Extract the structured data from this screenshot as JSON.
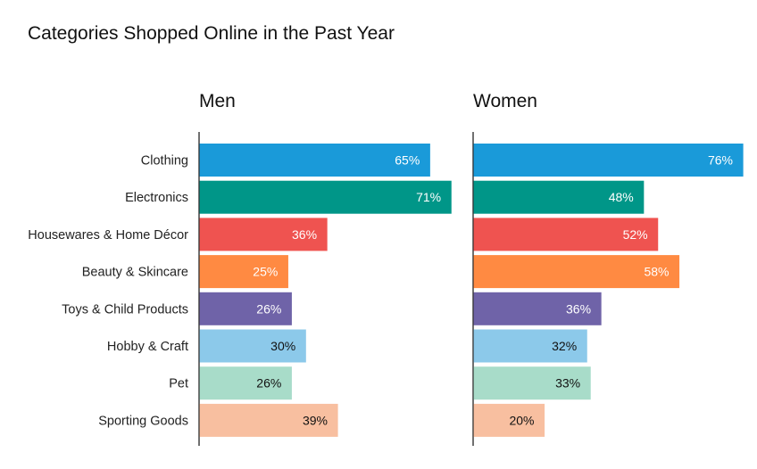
{
  "chart_data": {
    "type": "bar",
    "orientation": "horizontal",
    "title": "Categories Shopped Online in the Past Year",
    "categories": [
      "Clothing",
      "Electronics",
      "Housewares & Home Décor",
      "Beauty & Skincare",
      "Toys & Child Products",
      "Hobby & Craft",
      "Pet",
      "Sporting Goods"
    ],
    "series": [
      {
        "name": "Men",
        "values": [
          65,
          71,
          36,
          25,
          26,
          30,
          26,
          39
        ]
      },
      {
        "name": "Women",
        "values": [
          76,
          48,
          52,
          58,
          36,
          32,
          33,
          20
        ]
      }
    ],
    "value_suffix": "%",
    "bar_colors": [
      "#1a9ad9",
      "#009688",
      "#ef5350",
      "#ff8a42",
      "#6f63a8",
      "#8cc9ea",
      "#a8dcc9",
      "#f8bfa0"
    ],
    "label_colors": [
      "#ffffff",
      "#ffffff",
      "#ffffff",
      "#ffffff",
      "#ffffff",
      "#111111",
      "#111111",
      "#111111"
    ],
    "xlim": [
      0,
      76
    ],
    "grid": false,
    "legend": "none"
  }
}
